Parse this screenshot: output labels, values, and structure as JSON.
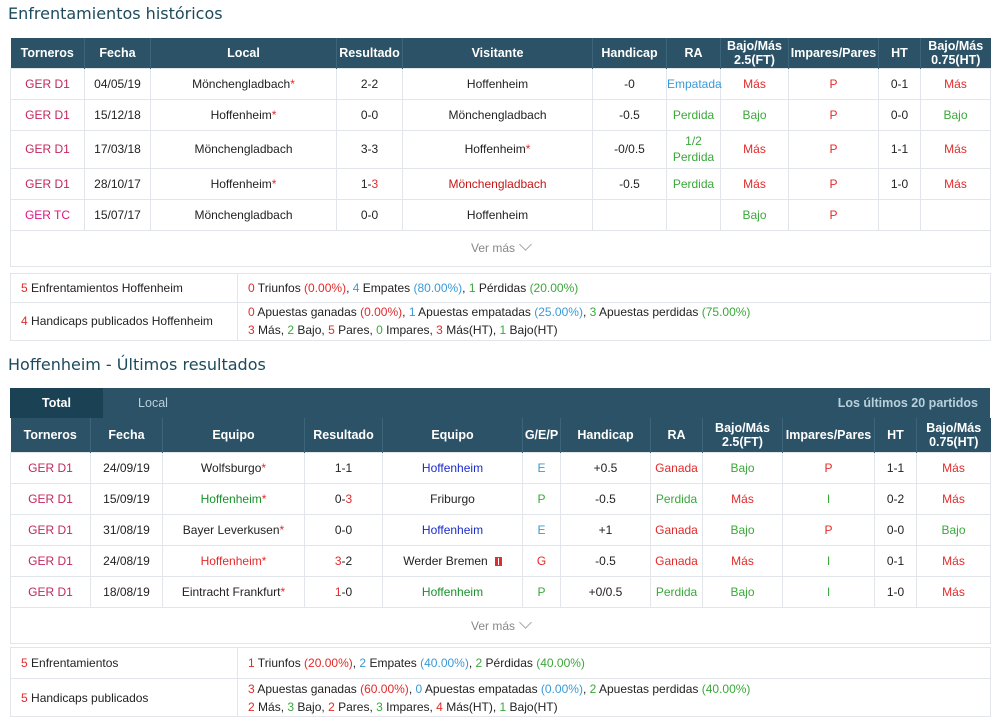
{
  "h2h": {
    "title": "Enfrentamientos históricos",
    "headers": [
      "Torneros",
      "Fecha",
      "Local",
      "Resultado",
      "Visitante",
      "Handicap",
      "RA",
      "Bajo/Más 2.5(FT)",
      "Impares/Pares",
      "HT",
      "Bajo/Más 0.75(HT)"
    ],
    "rows": [
      {
        "league": "GER D1",
        "date": "04/05/19",
        "home": "Mönchengladbach",
        "home_star": "*",
        "score": "2-2",
        "away": "Hoffenheim",
        "away_star": "",
        "hcp": "-0",
        "ra": "Empatada",
        "ou": "Más",
        "oe": "P",
        "ht": "0-1",
        "ou2": "Más"
      },
      {
        "league": "GER D1",
        "date": "15/12/18",
        "home": "Hoffenheim",
        "home_star": "*",
        "score": "0-0",
        "away": "Mönchengladbach",
        "away_star": "",
        "hcp": "-0.5",
        "ra": "Perdida",
        "ou": "Bajo",
        "oe": "P",
        "ht": "0-0",
        "ou2": "Bajo"
      },
      {
        "league": "GER D1",
        "date": "17/03/18",
        "home": "Mönchengladbach",
        "home_star": "",
        "score": "3-3",
        "away": "Hoffenheim",
        "away_star": "*",
        "hcp": "-0/0.5",
        "ra1": "1/2",
        "ra2": "Perdida",
        "ou": "Más",
        "oe": "P",
        "ht": "1-1",
        "ou2": "Más"
      },
      {
        "league": "GER D1",
        "date": "28/10/17",
        "home": "Hoffenheim",
        "home_star": "*",
        "score_a": "1-",
        "score_b": "3",
        "away": "Mönchengladbach",
        "away_star": "",
        "hcp": "-0.5",
        "ra": "Perdida",
        "ou": "Más",
        "oe": "P",
        "ht": "1-0",
        "ou2": "Más"
      },
      {
        "league": "GER TC",
        "date": "15/07/17",
        "home": "Mönchengladbach",
        "home_star": "",
        "score": "0-0",
        "away": "Hoffenheim",
        "away_star": "",
        "hcp": "",
        "ra": "",
        "ou": "Bajo",
        "oe": "P",
        "ht": "",
        "ou2": ""
      }
    ],
    "more": "Ver más",
    "summary1": {
      "n": "5",
      "label": " Enfrentamientos Hoffenheim",
      "w": "0",
      "w_t": " Triunfos ",
      "w_p": "(0.00%)",
      "d": "4",
      "d_t": " Empates ",
      "d_p": "(80.00%)",
      "l": "1",
      "l_t": " Pérdidas ",
      "l_p": "(20.00%)"
    },
    "summary2": {
      "n": "4",
      "label": " Handicaps publicados Hoffenheim",
      "a": "0",
      "a_t": " Apuestas ganadas ",
      "a_p": "(0.00%)",
      "b": "1",
      "b_t": " Apuestas empatadas ",
      "b_p": "(25.00%)",
      "c": "3",
      "c_t": " Apuestas perdidas ",
      "c_p": "(75.00%)",
      "m": "3",
      "m_t": " Más, ",
      "ba": "2",
      "ba_t": " Bajo, ",
      "pa": "5",
      "pa_t": " Pares, ",
      "im": "0",
      "im_t": " Impares, ",
      "mht": "3",
      "mht_t": " Más(HT), ",
      "bht": "1",
      "bht_t": " Bajo(HT)"
    }
  },
  "last": {
    "title": "Hoffenheim - Últimos resultados",
    "tab_total": "Total",
    "tab_local": "Local",
    "last_n": "Los últimos 20 partidos",
    "headers": [
      "Torneros",
      "Fecha",
      "Equipo",
      "Resultado",
      "Equipo",
      "G/E/P",
      "Handicap",
      "RA",
      "Bajo/Más 2.5(FT)",
      "Impares/Pares",
      "HT",
      "Bajo/Más 0.75(HT)"
    ],
    "rows": [
      {
        "league": "GER D1",
        "date": "24/09/19",
        "home": "Wolfsburgo",
        "score": "1-1",
        "away": "Hoffenheim",
        "gep": "E",
        "hcp": "+0.5",
        "ra": "Ganada",
        "ou": "Bajo",
        "oe": "P",
        "ht": "1-1",
        "ou2": "Más"
      },
      {
        "league": "GER D1",
        "date": "15/09/19",
        "home": "Hoffenheim",
        "score_a": "0-",
        "score_b": "3",
        "away": "Friburgo",
        "gep": "P",
        "hcp": "-0.5",
        "ra": "Perdida",
        "ou": "Más",
        "oe": "I",
        "ht": "0-2",
        "ou2": "Más"
      },
      {
        "league": "GER D1",
        "date": "31/08/19",
        "home": "Bayer Leverkusen",
        "score": "0-0",
        "away": "Hoffenheim",
        "gep": "E",
        "hcp": "+1",
        "ra": "Ganada",
        "ou": "Bajo",
        "oe": "P",
        "ht": "0-0",
        "ou2": "Bajo"
      },
      {
        "league": "GER D1",
        "date": "24/08/19",
        "home": "Hoffenheim",
        "score_a": "3",
        "score_b": "-2",
        "away": "Werder Bremen",
        "gep": "G",
        "hcp": "-0.5",
        "ra": "Ganada",
        "ou": "Más",
        "oe": "I",
        "ht": "0-1",
        "ou2": "Más"
      },
      {
        "league": "GER D1",
        "date": "18/08/19",
        "home": "Eintracht Frankfurt",
        "score_a": "1",
        "score_b": "-0",
        "away": "Hoffenheim",
        "gep": "P",
        "hcp": "+0/0.5",
        "ra": "Perdida",
        "ou": "Bajo",
        "oe": "I",
        "ht": "1-0",
        "ou2": "Más"
      }
    ],
    "star": "*",
    "more": "Ver más",
    "summary1": {
      "n": "5",
      "label": " Enfrentamientos",
      "w": "1",
      "w_t": " Triunfos ",
      "w_p": "(20.00%)",
      "d": "2",
      "d_t": " Empates ",
      "d_p": "(40.00%)",
      "l": "2",
      "l_t": " Pérdidas ",
      "l_p": "(40.00%)"
    },
    "summary2": {
      "n": "5",
      "label": " Handicaps publicados",
      "a": "3",
      "a_t": " Apuestas ganadas ",
      "a_p": "(60.00%)",
      "b": "0",
      "b_t": " Apuestas empatadas ",
      "b_p": "(0.00%)",
      "c": "2",
      "c_t": " Apuestas perdidas ",
      "c_p": "(40.00%)",
      "m": "2",
      "m_t": " Más, ",
      "ba": "3",
      "ba_t": " Bajo, ",
      "pa": "2",
      "pa_t": " Pares, ",
      "im": "3",
      "im_t": " Impares, ",
      "mht": "4",
      "mht_t": " Más(HT), ",
      "bht": "1",
      "bht_t": " Bajo(HT)"
    }
  }
}
